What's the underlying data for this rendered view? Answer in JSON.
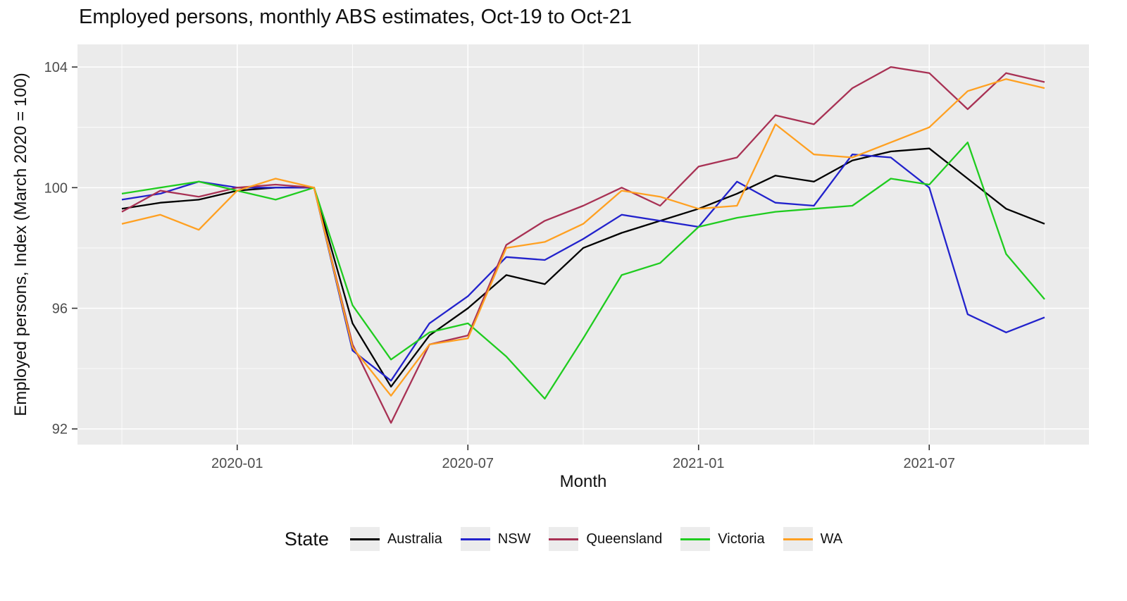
{
  "chart_data": {
    "type": "line",
    "title": "Employed persons, monthly ABS estimates, Oct-19 to Oct-21",
    "xlabel": "Month",
    "ylabel": "Employed persons, Index (March 2020 = 100)",
    "legend_title": "State",
    "legend_position": "bottom",
    "grid": true,
    "panel_background": "#EBEBEB",
    "grid_color": "#FFFFFF",
    "ylim": [
      91.48,
      104.75
    ],
    "y_ticks": [
      92,
      96,
      100,
      104
    ],
    "y_minor": [
      94,
      98,
      102
    ],
    "x": [
      "2019-10",
      "2019-11",
      "2019-12",
      "2020-01",
      "2020-02",
      "2020-03",
      "2020-04",
      "2020-05",
      "2020-06",
      "2020-07",
      "2020-08",
      "2020-09",
      "2020-10",
      "2020-11",
      "2020-12",
      "2021-01",
      "2021-02",
      "2021-03",
      "2021-04",
      "2021-05",
      "2021-06",
      "2021-07",
      "2021-08",
      "2021-09",
      "2021-10"
    ],
    "x_major_ticks": [
      "2020-01",
      "2020-07",
      "2021-01",
      "2021-07"
    ],
    "x_minor_ticks": [
      "2019-10",
      "2020-04",
      "2020-10",
      "2021-04",
      "2021-10"
    ],
    "series": [
      {
        "name": "Australia",
        "color": "#000000",
        "values": [
          99.3,
          99.5,
          99.6,
          99.9,
          100.0,
          100.0,
          95.5,
          93.4,
          95.1,
          96.0,
          97.1,
          96.8,
          98.0,
          98.5,
          98.9,
          99.3,
          99.8,
          100.4,
          100.2,
          100.9,
          101.2,
          101.3,
          100.3,
          99.3,
          98.8
        ]
      },
      {
        "name": "NSW",
        "color": "#2222CC",
        "values": [
          99.6,
          99.8,
          100.2,
          100.0,
          100.0,
          100.0,
          94.6,
          93.6,
          95.5,
          96.4,
          97.7,
          97.6,
          98.3,
          99.1,
          98.9,
          98.7,
          100.2,
          99.5,
          99.4,
          101.1,
          101.0,
          100.0,
          95.8,
          95.2,
          95.7
        ]
      },
      {
        "name": "Queensland",
        "color": "#A83154",
        "values": [
          99.2,
          99.9,
          99.7,
          100.0,
          100.1,
          100.0,
          94.8,
          92.2,
          94.8,
          95.1,
          98.1,
          98.9,
          99.4,
          100.0,
          99.4,
          100.7,
          101.0,
          102.4,
          102.1,
          103.3,
          104.0,
          103.8,
          102.6,
          103.8,
          103.5
        ]
      },
      {
        "name": "Victoria",
        "color": "#1FCC1F",
        "values": [
          99.8,
          100.0,
          100.2,
          99.9,
          99.6,
          100.0,
          96.1,
          94.3,
          95.2,
          95.5,
          94.4,
          93.0,
          95.0,
          97.1,
          97.5,
          98.7,
          99.0,
          99.2,
          99.3,
          99.4,
          100.3,
          100.1,
          101.5,
          97.8,
          96.3
        ]
      },
      {
        "name": "WA",
        "color": "#FFA021",
        "values": [
          98.8,
          99.1,
          98.6,
          99.9,
          100.3,
          100.0,
          94.7,
          93.1,
          94.8,
          95.0,
          98.0,
          98.2,
          98.8,
          99.9,
          99.7,
          99.3,
          99.4,
          102.1,
          101.1,
          101.0,
          101.5,
          102.0,
          103.2,
          103.6,
          103.3
        ]
      }
    ]
  }
}
